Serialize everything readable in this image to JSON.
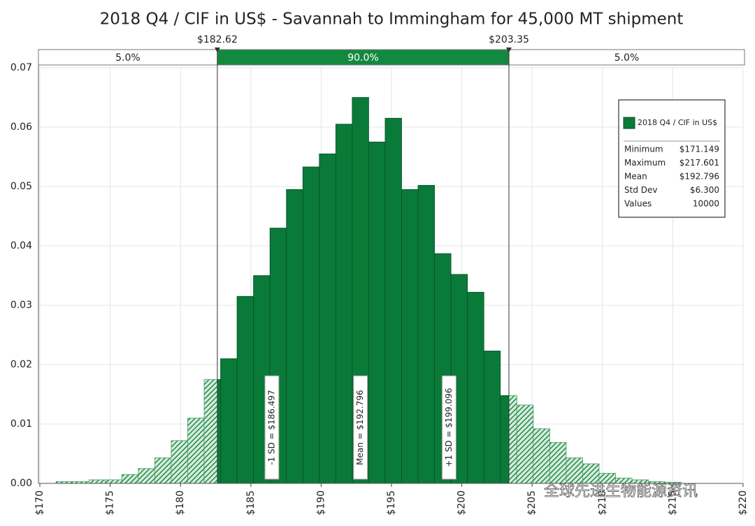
{
  "chart_data": {
    "type": "histogram",
    "title": "2018 Q4 / CIF in US$ - Savannah to Immingham for 45,000 MT shipment",
    "bins": [
      171.15,
      172.32,
      173.49,
      174.66,
      175.83,
      177.0,
      178.17,
      179.34,
      180.51,
      181.68,
      182.85,
      184.02,
      185.19,
      186.36,
      187.53,
      188.7,
      189.87,
      191.04,
      192.21,
      193.38,
      194.55,
      195.72,
      196.89,
      198.06,
      199.23,
      200.4,
      201.57,
      202.74,
      203.91,
      205.08,
      206.25,
      207.42,
      208.59,
      209.76,
      210.93,
      212.1,
      213.27,
      214.44,
      215.61
    ],
    "values": [
      0.0003,
      0.0003,
      0.0006,
      0.0006,
      0.0015,
      0.0025,
      0.0043,
      0.0072,
      0.011,
      0.0175,
      0.021,
      0.0315,
      0.035,
      0.043,
      0.0495,
      0.0533,
      0.0555,
      0.0605,
      0.065,
      0.0575,
      0.0615,
      0.0495,
      0.0502,
      0.0387,
      0.0352,
      0.0322,
      0.0223,
      0.0148,
      0.0132,
      0.0092,
      0.0069,
      0.0043,
      0.0033,
      0.0017,
      0.0009,
      0.0006,
      0.0003,
      0.0002
    ],
    "color": "#0a7a38",
    "hatch_color": "#3f9e62",
    "xlim": [
      170,
      220
    ],
    "xticks": [
      {
        "value": 170,
        "label": "$170"
      },
      {
        "value": 175,
        "label": "$175"
      },
      {
        "value": 180,
        "label": "$180"
      },
      {
        "value": 185,
        "label": "$185"
      },
      {
        "value": 190,
        "label": "$190"
      },
      {
        "value": 195,
        "label": "$195"
      },
      {
        "value": 200,
        "label": "$200"
      },
      {
        "value": 205,
        "label": "$205"
      },
      {
        "value": 210,
        "label": "$210"
      },
      {
        "value": 215,
        "label": "$215"
      },
      {
        "value": 220,
        "label": "$220"
      }
    ],
    "ylim": [
      0,
      0.07
    ],
    "yticks": [
      {
        "value": 0,
        "label": "0.00"
      },
      {
        "value": 0.01,
        "label": "0.01"
      },
      {
        "value": 0.02,
        "label": "0.02"
      },
      {
        "value": 0.03,
        "label": "0.03"
      },
      {
        "value": 0.04,
        "label": "0.04"
      },
      {
        "value": 0.05,
        "label": "0.05"
      },
      {
        "value": 0.06,
        "label": "0.06"
      },
      {
        "value": 0.07,
        "label": "0.07"
      }
    ],
    "grid": true,
    "delimiters": [
      {
        "value": 182.62,
        "label": "$182.62"
      },
      {
        "value": 203.35,
        "label": "$203.35"
      }
    ],
    "regions": [
      {
        "value": 5,
        "label": "5.0%"
      },
      {
        "value": 90,
        "label": "90.0%"
      },
      {
        "value": 5,
        "label": "5.0%"
      }
    ],
    "markers": [
      {
        "value": 186.497,
        "label": "-1 SD = $186.497"
      },
      {
        "value": 192.796,
        "label": "Mean = $192.796"
      },
      {
        "value": 199.096,
        "label": "+1 SD = $199.096"
      }
    ],
    "legend": {
      "name": "2018 Q4 / CIF in US$",
      "stats": [
        {
          "label": "Minimum",
          "text": "$171.149"
        },
        {
          "label": "Maximum",
          "text": "$217.601"
        },
        {
          "label": "Mean",
          "text": "$192.796"
        },
        {
          "label": "Std Dev",
          "text": "$6.300"
        },
        {
          "label": "Values",
          "text": "10000"
        }
      ]
    },
    "watermark": "全球先进生物能源资讯"
  }
}
